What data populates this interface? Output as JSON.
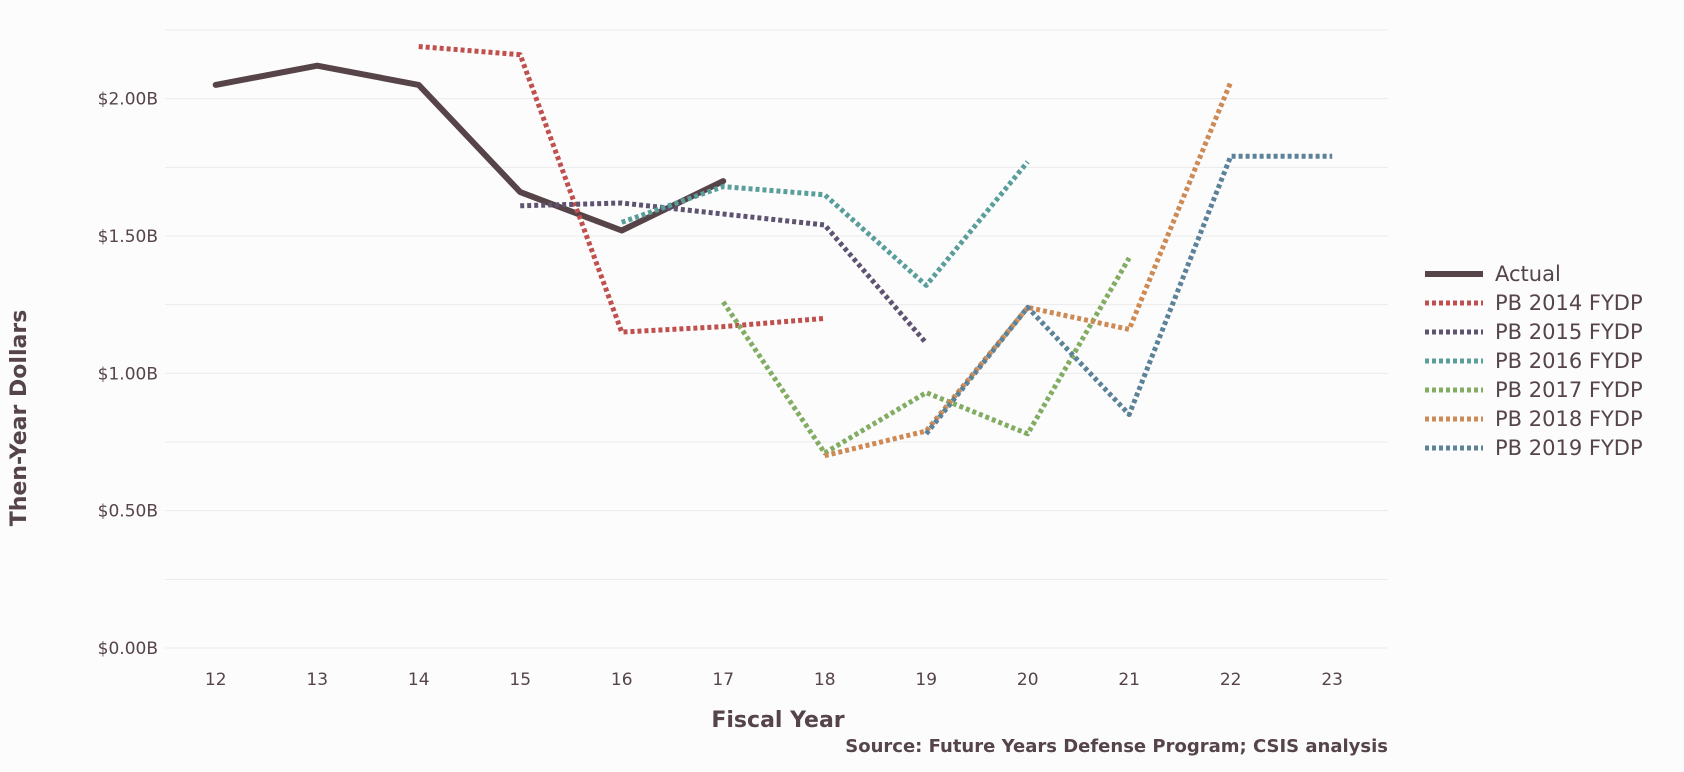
{
  "chart_data": {
    "type": "line",
    "title": "",
    "xlabel": "Fiscal Year",
    "ylabel": "Then-Year Dollars",
    "x": [
      12,
      13,
      14,
      15,
      16,
      17,
      18,
      19,
      20,
      21,
      22,
      23
    ],
    "xlim": [
      11.5,
      23.55
    ],
    "ylim": [
      0,
      2.25
    ],
    "yticks": [
      0,
      0.5,
      1.0,
      1.5,
      2.0
    ],
    "ytick_labels": [
      "$0.00B",
      "$0.50B",
      "$1.00B",
      "$1.50B",
      "$2.00B"
    ],
    "grid": true,
    "legend_position": "right",
    "series": [
      {
        "name": "Actual",
        "color": "#564449",
        "style": "solid",
        "points": [
          [
            12,
            2.05
          ],
          [
            13,
            2.12
          ],
          [
            14,
            2.05
          ],
          [
            15,
            1.66
          ],
          [
            16,
            1.52
          ],
          [
            17,
            1.7
          ]
        ]
      },
      {
        "name": "PB 2014 FYDP",
        "color": "#C0504D",
        "style": "dotted",
        "points": [
          [
            14,
            2.19
          ],
          [
            15,
            2.16
          ],
          [
            16,
            1.15
          ],
          [
            17,
            1.17
          ],
          [
            18,
            1.2
          ]
        ]
      },
      {
        "name": "PB 2015 FYDP",
        "color": "#5E5370",
        "style": "dotted",
        "points": [
          [
            15,
            1.61
          ],
          [
            16,
            1.62
          ],
          [
            17,
            1.58
          ],
          [
            18,
            1.54
          ],
          [
            19,
            1.11
          ]
        ]
      },
      {
        "name": "PB 2016 FYDP",
        "color": "#5A9E9C",
        "style": "dotted",
        "points": [
          [
            16,
            1.55
          ],
          [
            17,
            1.68
          ],
          [
            18,
            1.65
          ],
          [
            19,
            1.32
          ],
          [
            20,
            1.77
          ]
        ]
      },
      {
        "name": "PB 2017 FYDP",
        "color": "#82AC62",
        "style": "dotted",
        "points": [
          [
            17,
            1.26
          ],
          [
            18,
            0.71
          ],
          [
            19,
            0.93
          ],
          [
            20,
            0.78
          ],
          [
            21,
            1.42
          ]
        ]
      },
      {
        "name": "PB 2018 FYDP",
        "color": "#CD8A55",
        "style": "dotted",
        "points": [
          [
            18,
            0.7
          ],
          [
            19,
            0.79
          ],
          [
            20,
            1.24
          ],
          [
            21,
            1.16
          ],
          [
            22,
            2.06
          ]
        ]
      },
      {
        "name": "PB 2019 FYDP",
        "color": "#5B8298",
        "style": "dotted",
        "points": [
          [
            19,
            0.78
          ],
          [
            20,
            1.24
          ],
          [
            21,
            0.85
          ],
          [
            22,
            1.79
          ],
          [
            23,
            1.79
          ]
        ]
      }
    ],
    "source": "Source: Future Years Defense Program; CSIS analysis"
  }
}
